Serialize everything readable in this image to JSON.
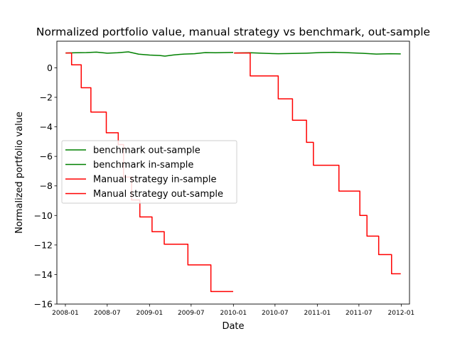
{
  "chart_data": {
    "type": "line",
    "title": "Normalized portfolio value, manual strategy vs benchmark, out-sample",
    "xlabel": "Date",
    "ylabel": "Normalized portfolio value",
    "xlim": [
      "2007-11-25",
      "2012-02-06"
    ],
    "ylim": [
      -16,
      1.8
    ],
    "yticks": [
      0,
      -2,
      -4,
      -6,
      -8,
      -10,
      -12,
      -14,
      -16
    ],
    "xticks": [
      "2008-01",
      "2008-07",
      "2009-01",
      "2009-07",
      "2010-01",
      "2010-07",
      "2011-01",
      "2011-07",
      "2012-01"
    ],
    "grid": false,
    "legend_position": "center-left",
    "series": [
      {
        "name": "benchmark out-sample",
        "color": "#008000",
        "x": [
          "2010-01-04",
          "2010-03-15",
          "2010-05-14",
          "2010-07-15",
          "2010-09-15",
          "2010-11-15",
          "2011-01-14",
          "2011-03-15",
          "2011-05-16",
          "2011-07-15",
          "2011-09-15",
          "2011-11-15",
          "2011-12-30"
        ],
        "y": [
          1.0,
          1.02,
          0.98,
          0.95,
          0.97,
          0.99,
          1.03,
          1.05,
          1.02,
          0.98,
          0.93,
          0.95,
          0.94
        ]
      },
      {
        "name": "benchmark in-sample",
        "color": "#008000",
        "x": [
          "2008-01-02",
          "2008-02-15",
          "2008-04-01",
          "2008-05-15",
          "2008-07-01",
          "2008-08-15",
          "2008-10-01",
          "2008-11-15",
          "2009-01-02",
          "2009-02-15",
          "2009-03-09",
          "2009-04-15",
          "2009-06-01",
          "2009-07-15",
          "2009-09-01",
          "2009-10-15",
          "2009-12-31"
        ],
        "y": [
          1.0,
          1.02,
          1.03,
          1.06,
          0.99,
          1.02,
          1.08,
          0.92,
          0.86,
          0.83,
          0.79,
          0.87,
          0.93,
          0.95,
          1.03,
          1.02,
          1.04
        ]
      },
      {
        "name": "Manual strategy in-sample",
        "color": "#ff0000",
        "x": [
          "2008-01-02",
          "2008-01-28",
          "2008-01-28",
          "2008-03-10",
          "2008-03-10",
          "2008-04-21",
          "2008-04-21",
          "2008-06-27",
          "2008-06-27",
          "2008-08-18",
          "2008-08-18",
          "2008-09-10",
          "2008-09-10",
          "2008-10-15",
          "2008-10-15",
          "2008-11-20",
          "2008-11-20",
          "2009-01-12",
          "2009-01-12",
          "2009-03-06",
          "2009-03-06",
          "2009-06-17",
          "2009-06-17",
          "2009-09-25",
          "2009-09-25",
          "2009-12-31"
        ],
        "y": [
          1.0,
          1.0,
          0.2,
          0.2,
          -1.35,
          -1.35,
          -3.0,
          -3.0,
          -4.4,
          -4.4,
          -5.2,
          -5.2,
          -7.4,
          -7.4,
          -8.95,
          -8.95,
          -10.1,
          -10.1,
          -11.1,
          -11.1,
          -11.95,
          -11.95,
          -13.35,
          -13.35,
          -15.15,
          -15.15
        ]
      },
      {
        "name": "Manual strategy out-sample",
        "color": "#ff0000",
        "x": [
          "2010-01-04",
          "2010-03-15",
          "2010-03-15",
          "2010-07-15",
          "2010-07-15",
          "2010-09-15",
          "2010-09-15",
          "2010-11-15",
          "2010-11-15",
          "2010-12-15",
          "2010-12-15",
          "2011-04-05",
          "2011-04-05",
          "2011-07-05",
          "2011-07-05",
          "2011-08-05",
          "2011-08-05",
          "2011-09-25",
          "2011-09-25",
          "2011-11-20",
          "2011-11-20",
          "2011-12-30"
        ],
        "y": [
          1.0,
          1.0,
          -0.55,
          -0.55,
          -2.1,
          -2.1,
          -3.55,
          -3.55,
          -5.05,
          -5.05,
          -6.6,
          -6.6,
          -8.35,
          -8.35,
          -10.0,
          -10.0,
          -11.4,
          -11.4,
          -12.65,
          -12.65,
          -13.95,
          -13.95
        ]
      }
    ]
  }
}
